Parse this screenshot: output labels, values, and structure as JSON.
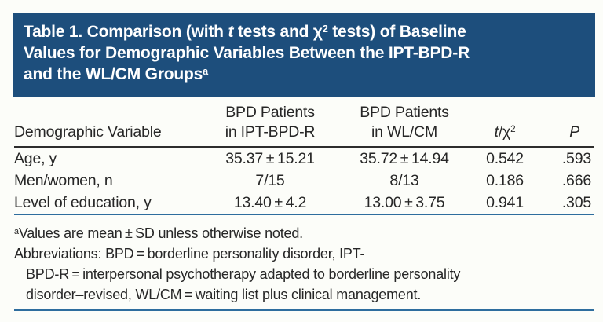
{
  "title": {
    "line1": {
      "pre": "Table 1. Comparison (with ",
      "italic_t": "t",
      "mid": " tests and χ",
      "sup": "2",
      "post": " tests) of Baseline"
    },
    "line2": "Values for Demographic Variables Between the IPT-BPD-R",
    "line3": {
      "text": "and the WL/CM Groups",
      "sup": "a"
    }
  },
  "table": {
    "col_headers": {
      "variable": "Demographic Variable",
      "ipt_line1": "BPD Patients",
      "ipt_line2": "in IPT-BPD-R",
      "wl_line1": "BPD Patients",
      "wl_line2": "in WL/CM",
      "stat_italic": "t",
      "stat_mid": "/χ",
      "stat_sup": "2",
      "p": "P"
    },
    "rows": [
      {
        "variable": "Age, y",
        "ipt": "35.37 ± 15.21",
        "wl": "35.72 ± 14.94",
        "stat": "0.542",
        "p": ".593"
      },
      {
        "variable": "Men/women, n",
        "ipt": "7/15",
        "wl": "8/13",
        "stat": "0.186",
        "p": ".666"
      },
      {
        "variable": "Level of education, y",
        "ipt": "13.40 ± 4.2",
        "wl": "13.00 ± 3.75",
        "stat": "0.941",
        "p": ".305"
      }
    ]
  },
  "footnotes": {
    "note_a_sup": "a",
    "note_a_text": "Values are mean ± SD unless otherwise noted.",
    "abbrev_line1": "Abbreviations: BPD = borderline personality disorder, IPT-",
    "abbrev_line2": "BPD-R = interpersonal psychotherapy adapted to borderline personality",
    "abbrev_line3": "disorder–revised, WL/CM = waiting list plus clinical management."
  },
  "colors": {
    "title_background": "#1d4e7c",
    "title_text": "#ffffff",
    "body_text": "#272727",
    "header_rule": "#2d2d2d",
    "blue_rule": "#2e6d9e",
    "page_background": "#fcfdf9"
  }
}
